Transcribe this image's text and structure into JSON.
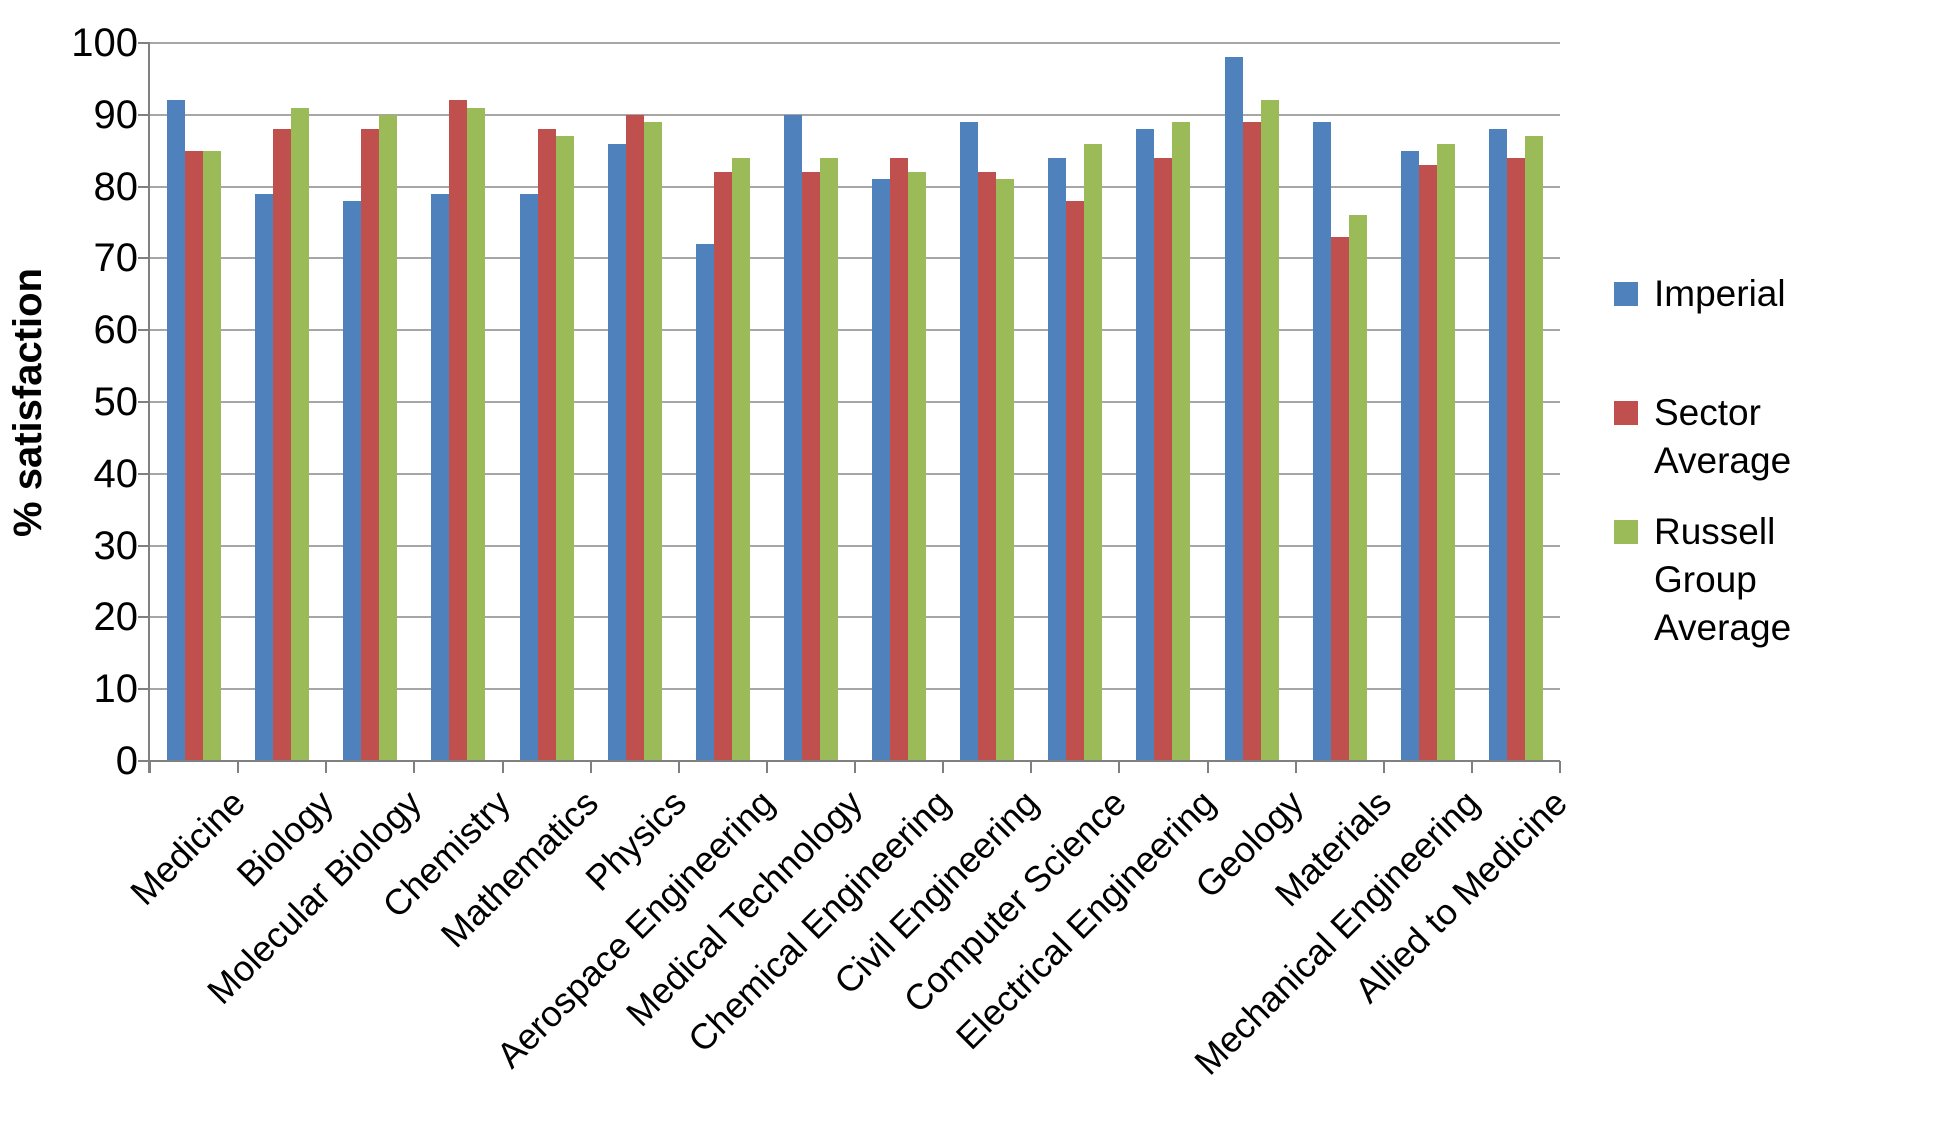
{
  "chart_data": {
    "type": "bar",
    "title": "",
    "xlabel": "",
    "ylabel": "% satisfaction",
    "ylim": [
      0,
      100
    ],
    "ytick_step": 10,
    "ytick_labels": [
      "0",
      "10",
      "20",
      "30",
      "40",
      "50",
      "60",
      "70",
      "80",
      "90",
      "100"
    ],
    "grid": true,
    "legend_position": "right",
    "categories": [
      "Medicine",
      "Biology",
      "Molecular Biology",
      "Chemistry",
      "Mathematics",
      "Physics",
      "Aerospace Engineering",
      "Medical Technology",
      "Chemical Engineering",
      "Civil Engineering",
      "Computer Science",
      "Electrical Engineering",
      "Geology",
      "Materials",
      "Mechanical Engineering",
      "Allied to Medicine"
    ],
    "series": [
      {
        "name": "Imperial",
        "color": "#4F81BD",
        "values": [
          92,
          79,
          78,
          79,
          79,
          86,
          72,
          90,
          81,
          89,
          84,
          88,
          98,
          89,
          85,
          88
        ]
      },
      {
        "name": "Sector Average",
        "color": "#C0504D",
        "values": [
          85,
          88,
          88,
          92,
          88,
          90,
          82,
          82,
          84,
          82,
          78,
          84,
          89,
          73,
          83,
          84
        ]
      },
      {
        "name": "Russell Group Average",
        "color": "#9BBB59",
        "values": [
          85,
          91,
          90,
          91,
          87,
          89,
          84,
          84,
          82,
          81,
          86,
          89,
          92,
          76,
          86,
          87
        ]
      }
    ],
    "axis_color": "#808080",
    "gridline_color": "#A6A6A6",
    "text_color": "#000000"
  }
}
